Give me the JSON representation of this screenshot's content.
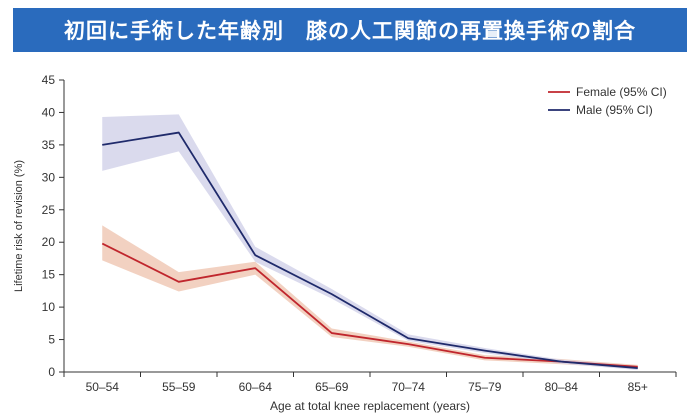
{
  "header": {
    "title": "初回に手術した年齢別　膝の人工関節の再置換手術の割合"
  },
  "colors": {
    "female": "#c0262d",
    "female_band": "#f0c9b6",
    "male": "#1f2a6b",
    "male_band": "#d4d3ea",
    "title_bg": "#2a6bbd"
  },
  "chart_data": {
    "type": "line",
    "title": "初回に手術した年齢別　膝の人工関節の再置換手術の割合",
    "xlabel": "Age at total knee replacement (years)",
    "ylabel": "Lifetime risk of revision (%)",
    "ylim": [
      0,
      45
    ],
    "yticks": [
      0,
      5,
      10,
      15,
      20,
      25,
      30,
      35,
      40,
      45
    ],
    "categories": [
      "50–54",
      "55–59",
      "60–64",
      "65–69",
      "70–74",
      "75–79",
      "80–84",
      "85+"
    ],
    "legend_position": "top-right",
    "series": [
      {
        "name": "Female (95% CI)",
        "values": [
          19.8,
          13.9,
          16.0,
          6.0,
          4.3,
          2.2,
          1.6,
          0.8
        ],
        "ci_low": [
          17.2,
          12.4,
          15.0,
          5.4,
          3.9,
          1.8,
          1.2,
          0.5
        ],
        "ci_high": [
          22.6,
          15.4,
          17.0,
          6.7,
          4.7,
          2.6,
          2.0,
          1.1
        ]
      },
      {
        "name": "Male (95% CI)",
        "values": [
          35.0,
          36.9,
          18.0,
          12.0,
          5.2,
          3.3,
          1.6,
          0.6
        ],
        "ci_low": [
          31.0,
          34.0,
          17.0,
          11.3,
          4.8,
          2.9,
          1.3,
          0.3
        ],
        "ci_high": [
          39.3,
          39.7,
          19.3,
          12.8,
          5.8,
          3.7,
          1.9,
          0.9
        ]
      }
    ]
  }
}
